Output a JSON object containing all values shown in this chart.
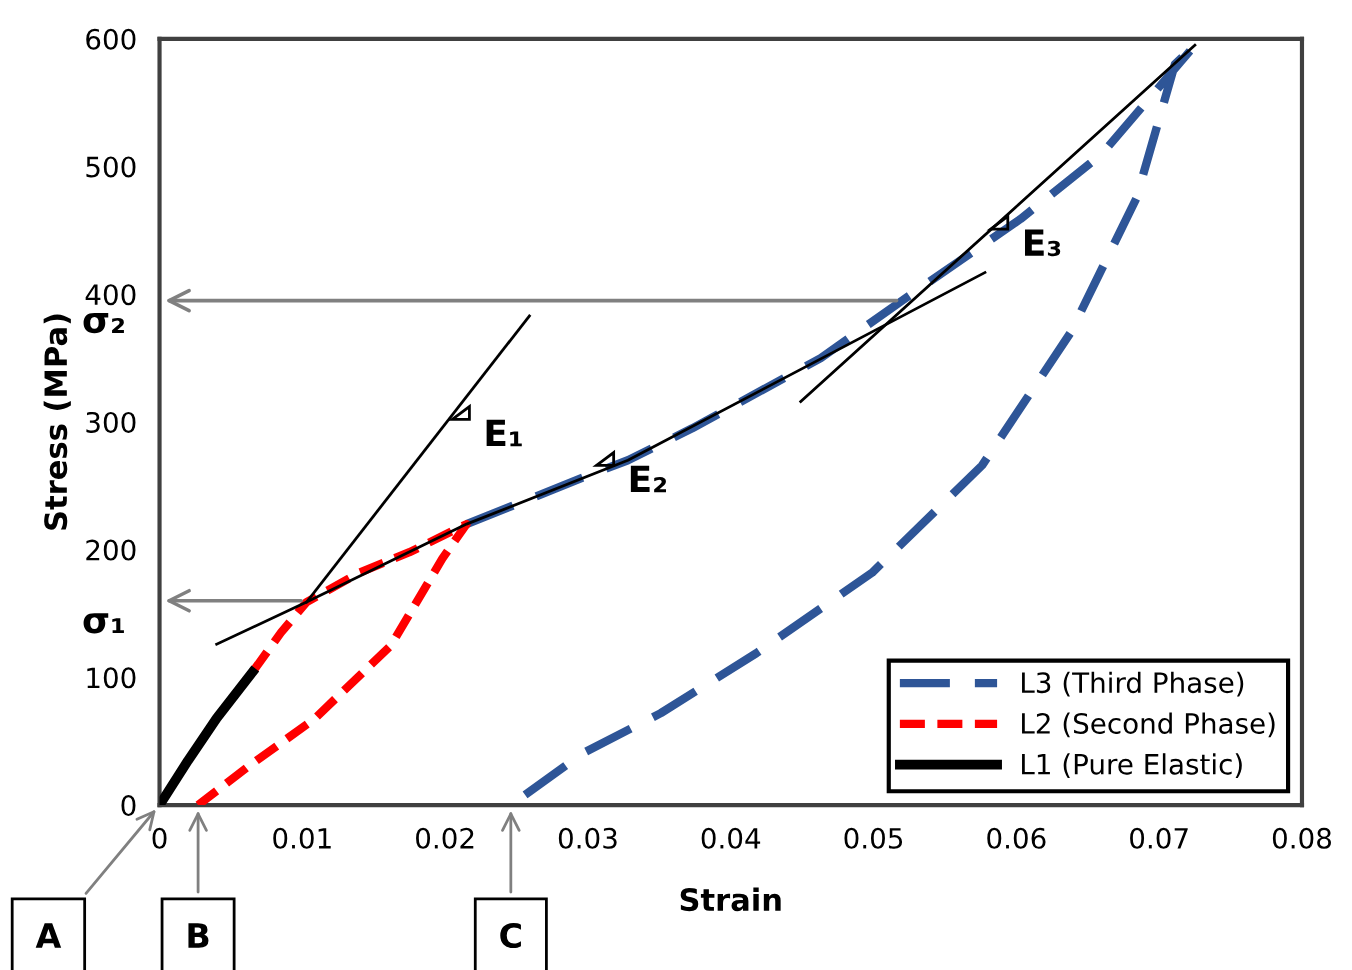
{
  "chart_data": {
    "type": "line",
    "xlabel": "Strain",
    "ylabel": "Stress (MPa)",
    "xlim": [
      0,
      0.08
    ],
    "xticks": [
      0,
      0.01,
      0.02,
      0.03,
      0.04,
      0.05,
      0.06,
      0.07,
      0.08
    ],
    "ylim": [
      0,
      600
    ],
    "yticks": [
      0,
      100,
      200,
      300,
      400,
      500,
      600
    ],
    "grid": false,
    "legend": "bottom right",
    "series": [
      {
        "name": "L3 (Third Phase)",
        "color": "#2e5597",
        "line_style": "dashed",
        "x": [
          0.0215,
          0.03,
          0.0328,
          0.0373,
          0.0463,
          0.052,
          0.0603,
          0.066,
          0.0725,
          0.0711,
          0.0684,
          0.0638,
          0.0576,
          0.0499,
          0.0418,
          0.0351,
          0.0297,
          0.0246
        ],
        "values": [
          220,
          258,
          270,
          295,
          350,
          395,
          459,
          510,
          595,
          580,
          475,
          370,
          266,
          182,
          119,
          72,
          41,
          0
        ]
      },
      {
        "name": "L2 (Second Phase)",
        "color": "#ff0000",
        "line_style": "dotted",
        "x": [
          0.0065,
          0.0085,
          0.0103,
          0.014,
          0.0175,
          0.0215,
          0.0198,
          0.0162,
          0.0108,
          0.0063,
          0.0027
        ],
        "values": [
          104,
          135,
          159,
          182,
          198,
          220,
          193,
          125,
          67,
          31,
          0
        ]
      },
      {
        "name": "L1 (Pure Elastic)",
        "color": "#000000",
        "line_style": "solid",
        "x": [
          0,
          0.002,
          0.004,
          0.0065
        ],
        "values": [
          0,
          35,
          68,
          104
        ]
      },
      {
        "color": "#000000",
        "line_style": "solid",
        "x": [
          0.0103,
          0.0259
        ],
        "values": [
          159,
          383
        ]
      },
      {
        "color": "#000000",
        "line_style": "solid",
        "x": [
          0.004,
          0.0103,
          0.0215,
          0.0328,
          0.0578
        ],
        "values": [
          126,
          159,
          220,
          270,
          417
        ]
      },
      {
        "color": "#000000",
        "line_style": "solid",
        "x": [
          0.0449,
          0.0725
        ],
        "values": [
          316,
          595
        ]
      }
    ],
    "annotations": [
      {
        "text": "σ₁",
        "x": 0.0103,
        "y": 160
      },
      {
        "text": "σ₂",
        "x": 0.052,
        "y": 395
      },
      {
        "text": "E₁",
        "x": 0.0205,
        "y": 302
      },
      {
        "text": "E₂",
        "x": 0.0306,
        "y": 266
      },
      {
        "text": "E₃",
        "x": 0.0582,
        "y": 451
      },
      {
        "text": "A",
        "x": 0,
        "y": 0
      },
      {
        "text": "B",
        "x": 0.0027,
        "y": 0
      },
      {
        "text": "C",
        "x": 0.0246,
        "y": 0
      }
    ]
  }
}
